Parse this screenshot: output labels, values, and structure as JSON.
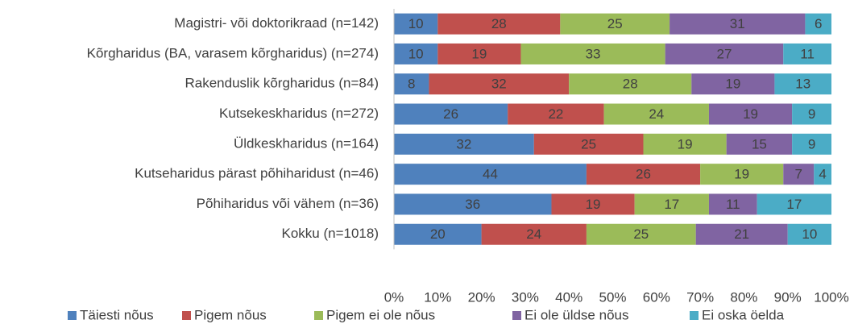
{
  "chart_data": {
    "type": "stacked-barh",
    "categories": [
      "Magistri- või doktorikraad (n=142)",
      "Kõrgharidus (BA, varasem kõrgharidus) (n=274)",
      "Rakenduslik kõrgharidus (n=84)",
      "Kutsekeskharidus (n=272)",
      "Üldkeskharidus (n=164)",
      "Kutseharidus pärast põhiharidust (n=46)",
      "Põhiharidus või vähem (n=36)",
      "Kokku (n=1018)"
    ],
    "series": [
      {
        "name": "Täiesti nõus",
        "color": "#4f81bd",
        "values": [
          10,
          10,
          8,
          26,
          32,
          44,
          36,
          20
        ]
      },
      {
        "name": "Pigem nõus",
        "color": "#c0504d",
        "values": [
          28,
          19,
          32,
          22,
          25,
          26,
          19,
          24
        ]
      },
      {
        "name": "Pigem ei ole nõus",
        "color": "#9bbb59",
        "values": [
          25,
          33,
          28,
          24,
          19,
          19,
          17,
          25
        ]
      },
      {
        "name": "Ei ole üldse nõus",
        "color": "#8064a2",
        "values": [
          31,
          27,
          19,
          19,
          15,
          7,
          11,
          21
        ]
      },
      {
        "name": "Ei oska öelda",
        "color": "#4bacc6",
        "values": [
          6,
          11,
          13,
          9,
          9,
          4,
          17,
          10
        ]
      }
    ],
    "xlim": [
      0,
      100
    ],
    "xticks": [
      {
        "value": 0,
        "label": "0%"
      },
      {
        "value": 10,
        "label": "10%"
      },
      {
        "value": 20,
        "label": "20%"
      },
      {
        "value": 30,
        "label": "30%"
      },
      {
        "value": 40,
        "label": "40%"
      },
      {
        "value": 50,
        "label": "50%"
      },
      {
        "value": 60,
        "label": "60%"
      },
      {
        "value": 70,
        "label": "70%"
      },
      {
        "value": 80,
        "label": "80%"
      },
      {
        "value": 90,
        "label": "90%"
      },
      {
        "value": 100,
        "label": "100%"
      }
    ],
    "grid": false,
    "legend": "bottom"
  }
}
